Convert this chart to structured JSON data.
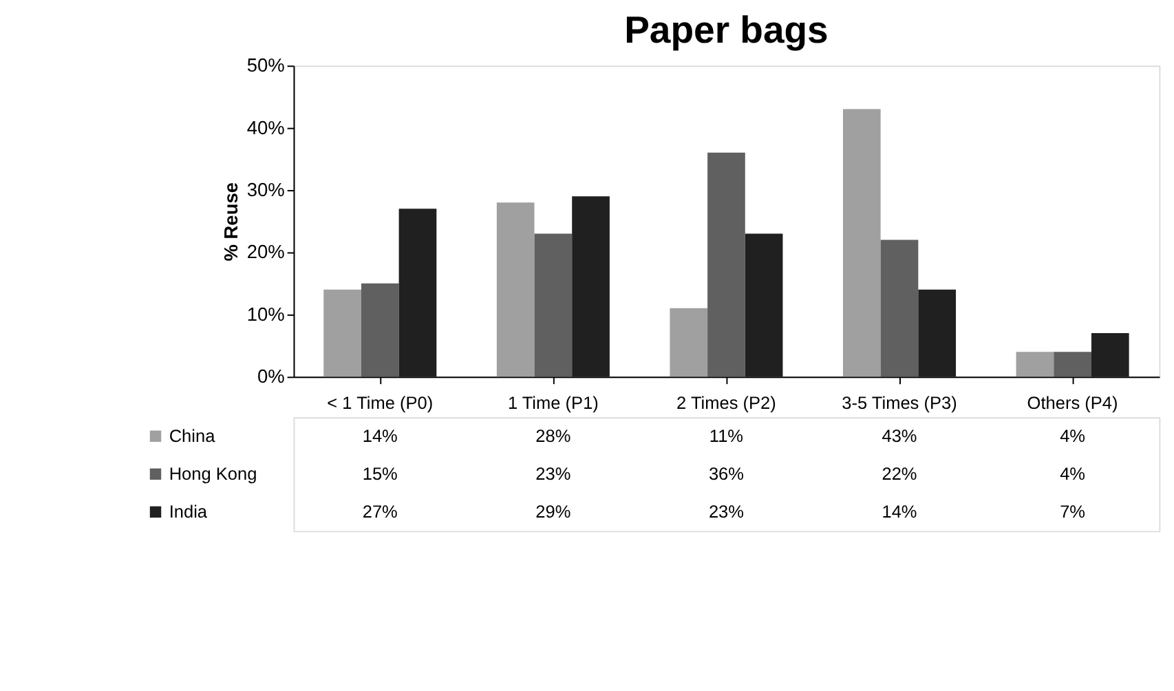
{
  "chart_data": {
    "type": "bar",
    "title": "Paper bags",
    "ylabel": "% Reuse",
    "categories": [
      "< 1 Time (P0)",
      "1 Time (P1)",
      "2 Times (P2)",
      "3-5 Times (P3)",
      "Others (P4)"
    ],
    "series": [
      {
        "name": "China",
        "color": "#a0a0a0",
        "values": [
          14,
          28,
          11,
          43,
          4
        ],
        "value_labels": [
          "14%",
          "28%",
          "11%",
          "43%",
          "4%"
        ]
      },
      {
        "name": "Hong Kong",
        "color": "#606060",
        "values": [
          15,
          23,
          36,
          22,
          4
        ],
        "value_labels": [
          "15%",
          "23%",
          "36%",
          "22%",
          "4%"
        ]
      },
      {
        "name": "India",
        "color": "#202020",
        "values": [
          27,
          29,
          23,
          14,
          7
        ],
        "value_labels": [
          "27%",
          "29%",
          "23%",
          "14%",
          "7%"
        ]
      }
    ],
    "ylim": [
      0,
      50
    ],
    "yticks": [
      {
        "value": 0,
        "label": "0%"
      },
      {
        "value": 10,
        "label": "10%"
      },
      {
        "value": 20,
        "label": "20%"
      },
      {
        "value": 30,
        "label": "30%"
      },
      {
        "value": 40,
        "label": "40%"
      },
      {
        "value": 50,
        "label": "50%"
      }
    ],
    "grid": false,
    "legend": "bottom"
  }
}
